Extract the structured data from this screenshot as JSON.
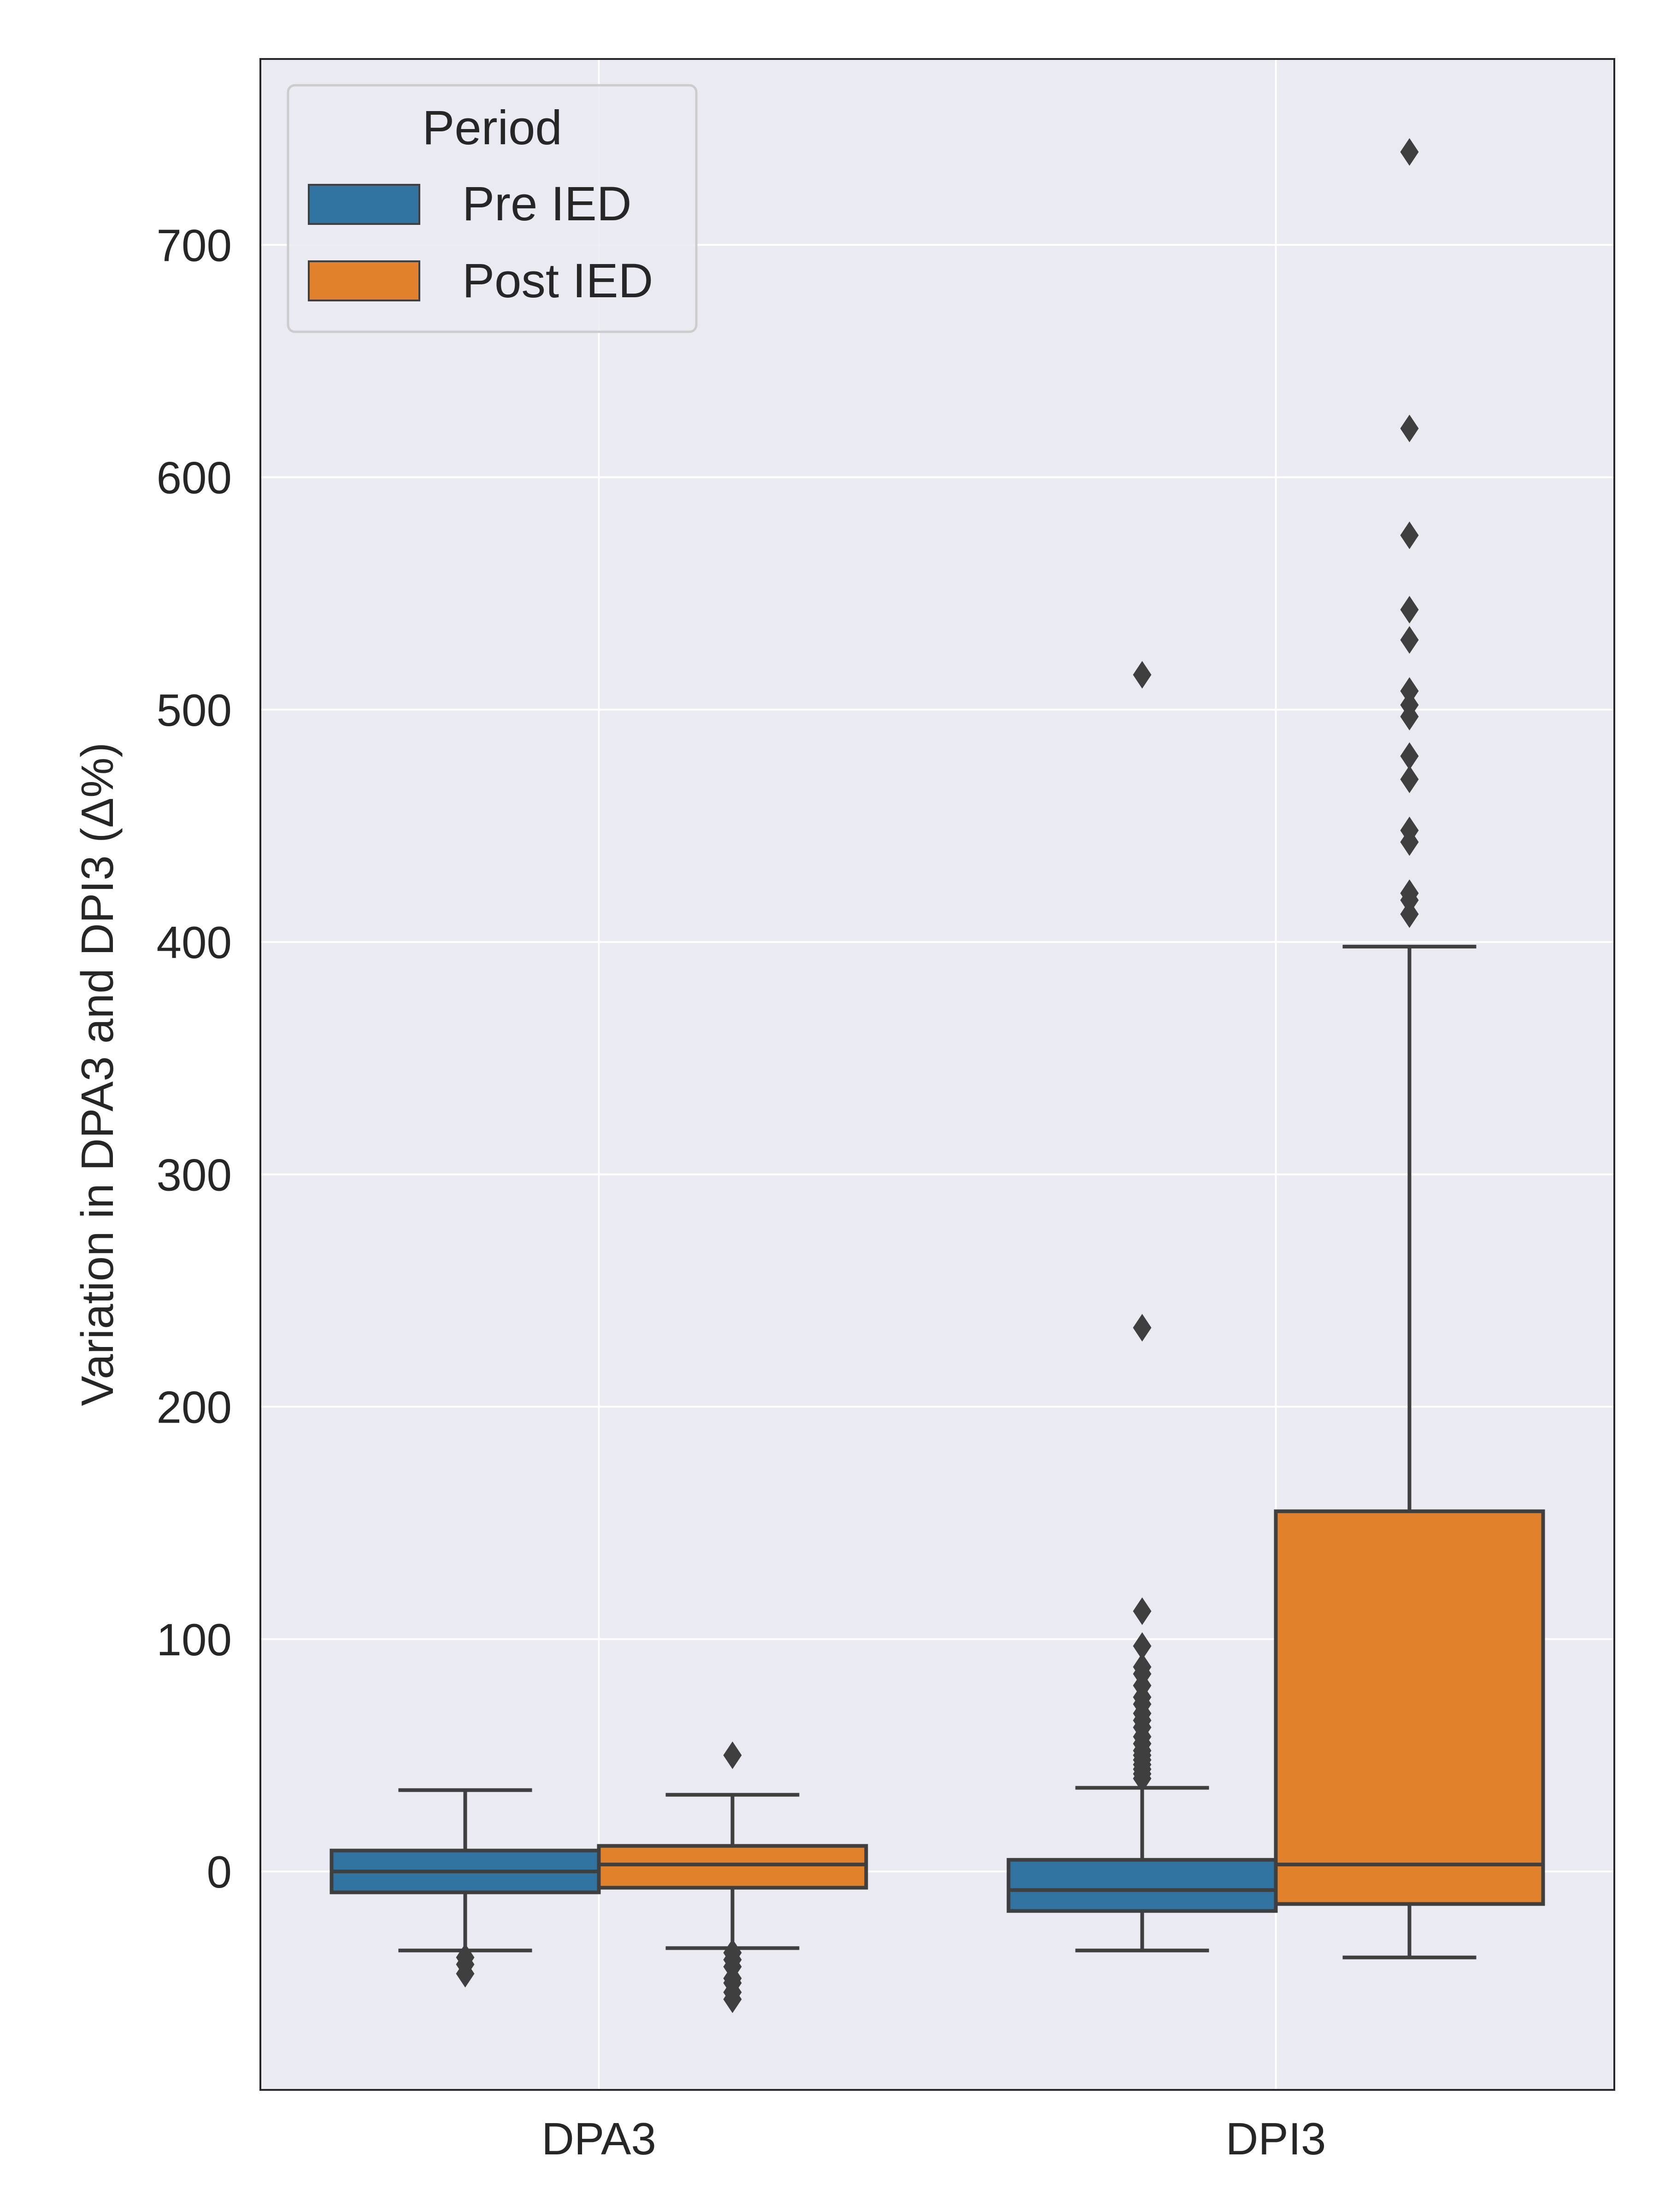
{
  "chart_data": {
    "type": "box",
    "title": "",
    "xlabel": "",
    "ylabel": "Variation in DPA3 and DPI3 (Δ%)",
    "ylim": [
      -94,
      780
    ],
    "yticks": [
      0,
      100,
      200,
      300,
      400,
      500,
      600,
      700
    ],
    "grid": true,
    "categories": [
      "DPA3",
      "DPI3"
    ],
    "legend": {
      "title": "Period",
      "placement": "top-left"
    },
    "colors": {
      "Pre IED": "#3274a1",
      "Post IED": "#e1812c",
      "line": "#3f3f3f",
      "background": "#eaeaf2",
      "grid": "#ffffff"
    },
    "series": [
      {
        "name": "Pre IED",
        "boxes": [
          {
            "category": "DPA3",
            "whisker_low": -34,
            "q1": -9,
            "median": 0,
            "q3": 9,
            "whisker_high": 35,
            "outliers": [
              -37,
              -40,
              -44
            ]
          },
          {
            "category": "DPI3",
            "whisker_low": -34,
            "q1": -17,
            "median": -8,
            "q3": 5,
            "whisker_high": 36,
            "outliers": [
              40,
              42,
              44,
              46,
              48,
              50,
              52,
              55,
              58,
              62,
              65,
              68,
              72,
              75,
              80,
              85,
              88,
              97,
              112,
              234,
              515
            ]
          }
        ]
      },
      {
        "name": "Post IED",
        "boxes": [
          {
            "category": "DPA3",
            "whisker_low": -33,
            "q1": -7,
            "median": 3,
            "q3": 11,
            "whisker_high": 33,
            "outliers": [
              50,
              -35,
              -38,
              -41,
              -46,
              -48,
              -52,
              -55
            ]
          },
          {
            "category": "DPI3",
            "whisker_low": -37,
            "q1": -14,
            "median": 3,
            "q3": 155,
            "whisker_high": 398,
            "outliers": [
              412,
              418,
              421,
              443,
              448,
              470,
              480,
              497,
              502,
              508,
              530,
              543,
              575,
              621,
              740
            ]
          }
        ]
      }
    ]
  }
}
